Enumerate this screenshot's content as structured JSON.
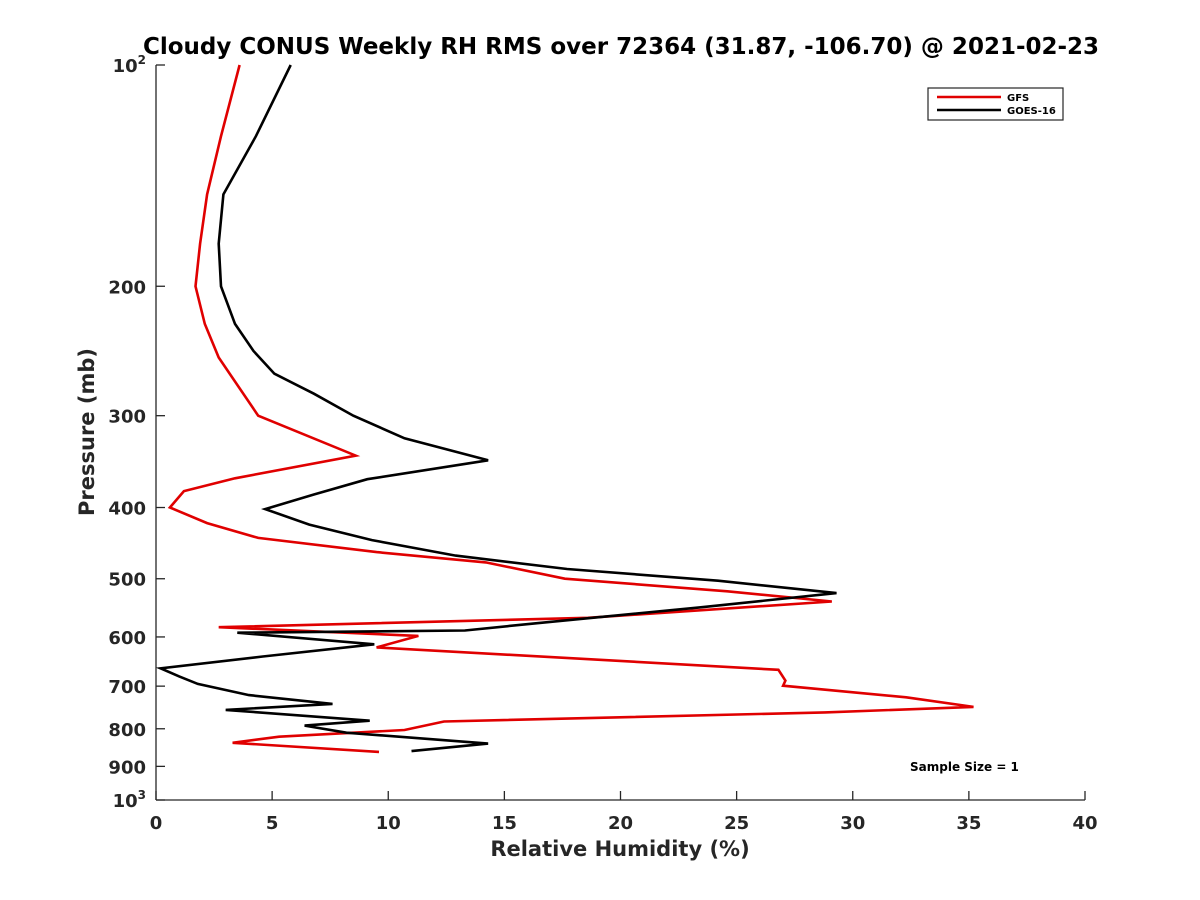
{
  "chart_data": {
    "type": "line",
    "title": "Cloudy CONUS Weekly RH RMS over 72364 (31.87, -106.70) @ 2021-02-23",
    "xlabel": "Relative Humidity (%)",
    "ylabel": "Pressure (mb)",
    "xlim": [
      0,
      40
    ],
    "ylim": [
      100,
      1000
    ],
    "y_scale": "log",
    "y_reversed": true,
    "grid": false,
    "legend_position": "top-right",
    "x_ticks": [
      0,
      5,
      10,
      15,
      20,
      25,
      30,
      35,
      40
    ],
    "y_ticks": [
      {
        "value": 100,
        "base": "10",
        "exp": "2"
      },
      {
        "value": 200,
        "label": "200"
      },
      {
        "value": 300,
        "label": "300"
      },
      {
        "value": 400,
        "label": "400"
      },
      {
        "value": 500,
        "label": "500"
      },
      {
        "value": 600,
        "label": "600"
      },
      {
        "value": 700,
        "label": "700"
      },
      {
        "value": 800,
        "label": "800"
      },
      {
        "value": 900,
        "label": "900"
      },
      {
        "value": 1000,
        "base": "10",
        "exp": "3"
      }
    ],
    "annotation": "Sample Size = 1",
    "series": [
      {
        "name": "GFS",
        "color": "#e00000",
        "points": [
          [
            3.6,
            100
          ],
          [
            2.8,
            125
          ],
          [
            2.2,
            150
          ],
          [
            1.9,
            175
          ],
          [
            1.7,
            200
          ],
          [
            2.1,
            225
          ],
          [
            2.7,
            250
          ],
          [
            4.4,
            300
          ],
          [
            8.6,
            340
          ],
          [
            3.4,
            365
          ],
          [
            1.2,
            380
          ],
          [
            0.6,
            400
          ],
          [
            2.2,
            420
          ],
          [
            4.4,
            440
          ],
          [
            9.5,
            460
          ],
          [
            14.2,
            475
          ],
          [
            17.6,
            500
          ],
          [
            24.6,
            520
          ],
          [
            29.1,
            537
          ],
          [
            18.6,
            565
          ],
          [
            2.7,
            582
          ],
          [
            11.3,
            598
          ],
          [
            9.5,
            620
          ],
          [
            26.8,
            665
          ],
          [
            27.1,
            688
          ],
          [
            27.0,
            699
          ],
          [
            32.3,
            725
          ],
          [
            35.2,
            747
          ],
          [
            28.8,
            760
          ],
          [
            12.4,
            782
          ],
          [
            10.7,
            803
          ],
          [
            5.3,
            820
          ],
          [
            3.3,
            836
          ],
          [
            9.6,
            860
          ]
        ]
      },
      {
        "name": "GOES-16",
        "color": "#000000",
        "points": [
          [
            5.8,
            100
          ],
          [
            4.3,
            125
          ],
          [
            2.9,
            150
          ],
          [
            2.7,
            175
          ],
          [
            2.8,
            200
          ],
          [
            3.4,
            225
          ],
          [
            4.2,
            245
          ],
          [
            5.1,
            263
          ],
          [
            6.8,
            280
          ],
          [
            8.5,
            300
          ],
          [
            10.7,
            322
          ],
          [
            14.3,
            345
          ],
          [
            9.1,
            366
          ],
          [
            6.8,
            384
          ],
          [
            4.7,
            402
          ],
          [
            6.6,
            422
          ],
          [
            9.3,
            443
          ],
          [
            12.9,
            465
          ],
          [
            17.7,
            485
          ],
          [
            24.2,
            503
          ],
          [
            29.3,
            523
          ],
          [
            23.4,
            547
          ],
          [
            16.3,
            575
          ],
          [
            13.3,
            588
          ],
          [
            3.5,
            592
          ],
          [
            9.4,
            614
          ],
          [
            4.6,
            638
          ],
          [
            0.2,
            662
          ],
          [
            1.0,
            679
          ],
          [
            1.8,
            695
          ],
          [
            4.0,
            720
          ],
          [
            7.6,
            740
          ],
          [
            3.0,
            754
          ],
          [
            9.2,
            780
          ],
          [
            6.4,
            792
          ],
          [
            8.2,
            810
          ],
          [
            14.3,
            838
          ],
          [
            11.0,
            858
          ]
        ]
      }
    ]
  }
}
